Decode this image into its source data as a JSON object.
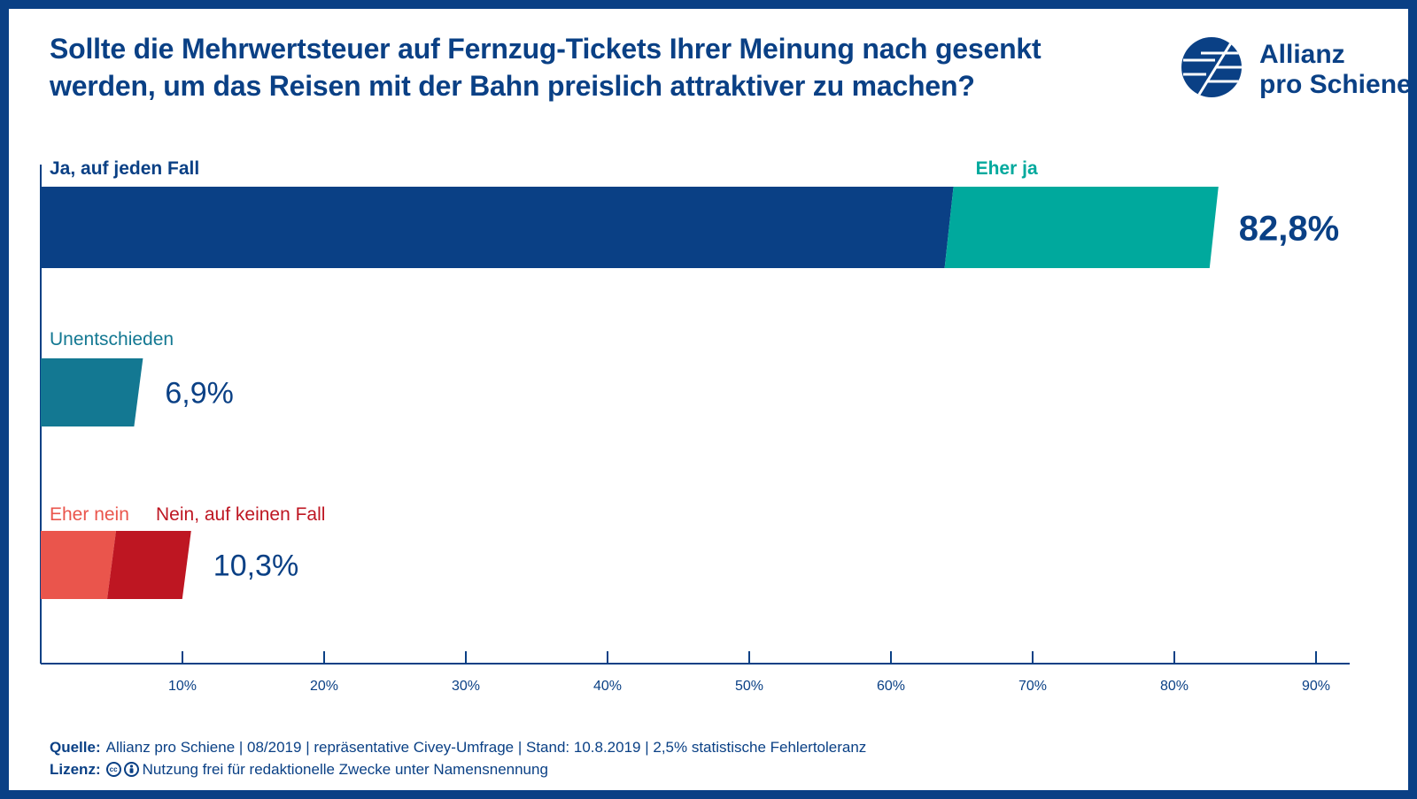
{
  "title": "Sollte die Mehrwertsteuer auf Fernzug-Tickets Ihrer Meinung nach gesenkt werden, um das Reisen mit der Bahn preislich attraktiver zu machen?",
  "logo": {
    "line1": "Allianz",
    "line2": "pro Schiene"
  },
  "colors": {
    "frame": "#0a4085",
    "ja_auf_jeden_fall": "#0a4085",
    "eher_ja": "#00a99d",
    "unentschieden": "#137892",
    "eher_nein": "#ea554c",
    "nein_auf_keinen_fall": "#be1622"
  },
  "chart_data": {
    "type": "bar",
    "orientation": "horizontal",
    "stacked": true,
    "xlim": [
      0,
      92
    ],
    "x_ticks": [
      10,
      20,
      30,
      40,
      50,
      60,
      70,
      80,
      90
    ],
    "x_tick_labels": [
      "10%",
      "20%",
      "30%",
      "40%",
      "50%",
      "60%",
      "70%",
      "80%",
      "90%"
    ],
    "rows": [
      {
        "total_label": "82,8%",
        "total": 82.8,
        "segments": [
          {
            "name": "Ja, auf jeden Fall",
            "value": 64.1,
            "color": "#0a4085"
          },
          {
            "name": "Eher ja",
            "value": 18.7,
            "color": "#00a99d"
          }
        ]
      },
      {
        "total_label": "6,9%",
        "total": 6.9,
        "segments": [
          {
            "name": "Unentschieden",
            "value": 6.9,
            "color": "#137892"
          }
        ]
      },
      {
        "total_label": "10,3%",
        "total": 10.3,
        "segments": [
          {
            "name": "Eher nein",
            "value": 5.0,
            "color": "#ea554c"
          },
          {
            "name": "Nein, auf keinen Fall",
            "value": 5.3,
            "color": "#be1622"
          }
        ]
      }
    ]
  },
  "footer": {
    "source_key": "Quelle:",
    "source_text": "Allianz pro Schiene | 08/2019 | repräsentative Civey-Umfrage | Stand: 10.8.2019 | 2,5% statistische Fehlertoleranz",
    "license_key": "Lizenz:",
    "license_text": "Nutzung frei für redaktionelle Zwecke unter Namensnennung"
  }
}
